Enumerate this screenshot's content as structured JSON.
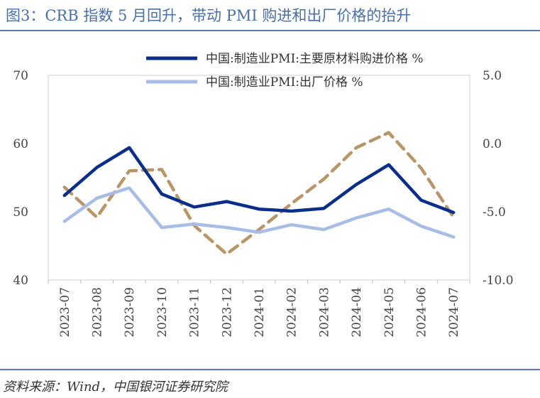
{
  "title": "图3：CRB 指数 5 月回升，带动 PMI 购进和出厂价格的抬升",
  "source": "资料来源：Wind，中国银河证券研究院",
  "chart_data": {
    "type": "line",
    "categories": [
      "2023-07",
      "2023-08",
      "2023-09",
      "2023-10",
      "2023-11",
      "2023-12",
      "2024-01",
      "2024-02",
      "2024-03",
      "2024-04",
      "2024-05",
      "2024-06",
      "2024-07"
    ],
    "y_left": {
      "ylim": [
        40,
        70
      ],
      "ticks": [
        "70",
        "60",
        "50",
        "40"
      ]
    },
    "y_right": {
      "ylim": [
        -10,
        5
      ],
      "ticks": [
        "5.0",
        "0.0",
        "-5.0",
        "-10.0"
      ]
    },
    "series": [
      {
        "name": "中国:制造业PMI:主要原材料购进价格 %",
        "axis": "left",
        "color": "#0a2e8a",
        "style": "solid",
        "values": [
          52.4,
          56.5,
          59.4,
          52.6,
          50.7,
          51.5,
          50.4,
          50.1,
          50.5,
          54.0,
          56.9,
          51.7,
          49.9
        ]
      },
      {
        "name": "中国:制造业PMI:出厂价格 %",
        "axis": "left",
        "color": "#a8bde6",
        "style": "solid",
        "values": [
          48.6,
          52.0,
          53.5,
          47.7,
          48.2,
          47.7,
          47.0,
          48.1,
          47.4,
          49.1,
          50.4,
          47.9,
          46.3
        ]
      },
      {
        "name": "",
        "axis": "right",
        "color": "#b89668",
        "style": "dashed",
        "values": [
          -3.2,
          -5.4,
          -2.0,
          -1.9,
          -6.0,
          -8.1,
          -6.3,
          -4.4,
          -2.6,
          -0.3,
          0.8,
          -1.8,
          -5.4
        ]
      }
    ]
  }
}
